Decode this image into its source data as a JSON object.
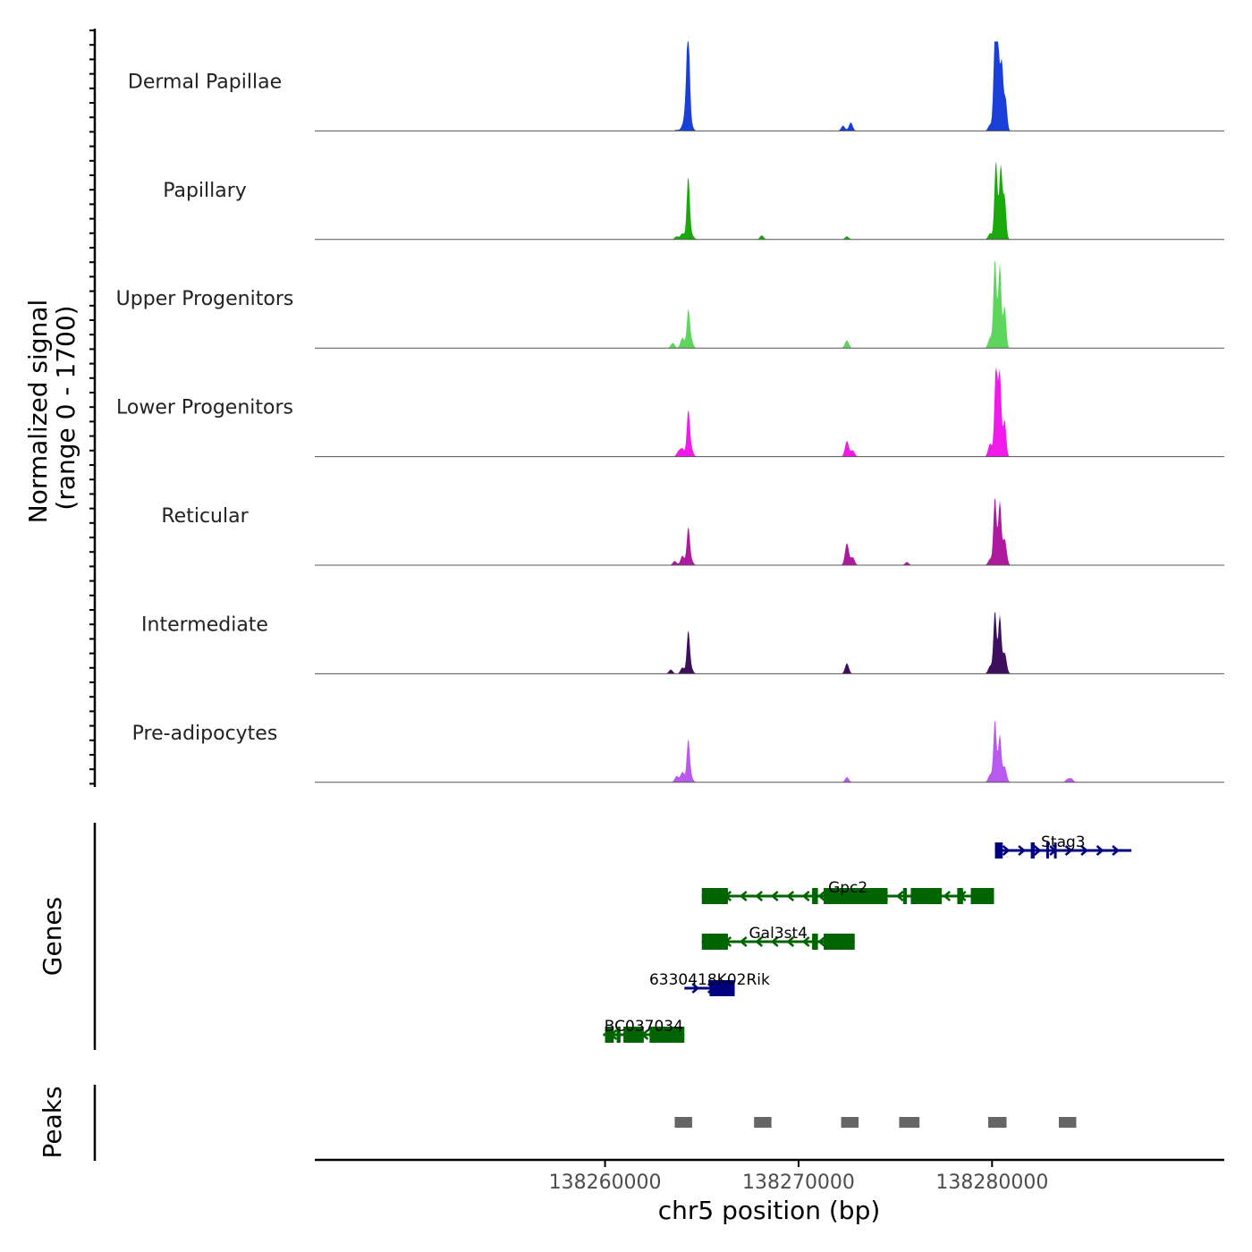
{
  "chart_data": {
    "type": "area",
    "chromosome": "chr5",
    "xlabel": "chr5 position (bp)",
    "xlim": [
      138245000,
      138292000
    ],
    "x_ticks": [
      138260000,
      138270000,
      138280000
    ],
    "x_tick_labels": [
      "138260000",
      "138270000",
      "138280000"
    ],
    "signal_axis": {
      "title_line1": "Normalized signal",
      "title_line2": "(range 0 - 1700)",
      "ylim": [
        0,
        1700
      ]
    },
    "tracks": [
      {
        "name": "Dermal Papillae",
        "color": "#1a3fd9",
        "peaks": [
          [
            138263700,
            20
          ],
          [
            138264000,
            75
          ],
          [
            138264200,
            480
          ],
          [
            138264300,
            1700
          ],
          [
            138264450,
            120
          ],
          [
            138272300,
            100
          ],
          [
            138272700,
            160
          ],
          [
            138279900,
            120
          ],
          [
            138280150,
            1700
          ],
          [
            138280300,
            1600
          ],
          [
            138280500,
            1300
          ],
          [
            138280700,
            600
          ]
        ]
      },
      {
        "name": "Papillary",
        "color": "#1aa80d",
        "peaks": [
          [
            138263700,
            60
          ],
          [
            138264000,
            120
          ],
          [
            138264300,
            1200
          ],
          [
            138264500,
            80
          ],
          [
            138268100,
            80
          ],
          [
            138272500,
            60
          ],
          [
            138279900,
            120
          ],
          [
            138280200,
            1500
          ],
          [
            138280450,
            1400
          ],
          [
            138280650,
            800
          ]
        ]
      },
      {
        "name": "Upper Progenitors",
        "color": "#5ed65e",
        "peaks": [
          [
            138263500,
            100
          ],
          [
            138264000,
            200
          ],
          [
            138264300,
            700
          ],
          [
            138264450,
            150
          ],
          [
            138272500,
            150
          ],
          [
            138279900,
            200
          ],
          [
            138280150,
            1700
          ],
          [
            138280400,
            1600
          ],
          [
            138280650,
            800
          ]
        ]
      },
      {
        "name": "Lower Progenitors",
        "color": "#f01aea",
        "peaks": [
          [
            138263800,
            100
          ],
          [
            138264000,
            150
          ],
          [
            138264300,
            850
          ],
          [
            138264450,
            150
          ],
          [
            138272500,
            300
          ],
          [
            138272800,
            120
          ],
          [
            138279900,
            250
          ],
          [
            138280200,
            1700
          ],
          [
            138280400,
            1600
          ],
          [
            138280650,
            700
          ]
        ]
      },
      {
        "name": "Reticular",
        "color": "#ad1a9e",
        "peaks": [
          [
            138263600,
            80
          ],
          [
            138264000,
            180
          ],
          [
            138264300,
            700
          ],
          [
            138264450,
            100
          ],
          [
            138272500,
            420
          ],
          [
            138272800,
            150
          ],
          [
            138275600,
            60
          ],
          [
            138279900,
            120
          ],
          [
            138280150,
            1300
          ],
          [
            138280400,
            1200
          ],
          [
            138280650,
            500
          ]
        ]
      },
      {
        "name": "Intermediate",
        "color": "#3d0f5c",
        "peaks": [
          [
            138263400,
            80
          ],
          [
            138264000,
            120
          ],
          [
            138264300,
            800
          ],
          [
            138264450,
            100
          ],
          [
            138272500,
            200
          ],
          [
            138279900,
            150
          ],
          [
            138280150,
            1200
          ],
          [
            138280400,
            1100
          ],
          [
            138280650,
            400
          ]
        ]
      },
      {
        "name": "Pre-adipocytes",
        "color": "#b85af0",
        "peaks": [
          [
            138263700,
            120
          ],
          [
            138264000,
            200
          ],
          [
            138264300,
            800
          ],
          [
            138264450,
            100
          ],
          [
            138272500,
            100
          ],
          [
            138279900,
            150
          ],
          [
            138280150,
            1200
          ],
          [
            138280400,
            900
          ],
          [
            138280650,
            300
          ],
          [
            138283900,
            60
          ],
          [
            138284100,
            70
          ]
        ]
      }
    ],
    "genes": {
      "title": "Genes",
      "items": [
        {
          "name": "Stag3",
          "strand": "+",
          "color": "#000080",
          "start": 138280150,
          "end": 138287200,
          "exons": [
            [
              138280150,
              138280550
            ],
            [
              138282000,
              138282200
            ],
            [
              138282800,
              138282900
            ],
            [
              138283200,
              138283300
            ]
          ]
        },
        {
          "name": "Gpc2",
          "strand": "-",
          "color": "#006400",
          "start": 138265000,
          "end": 138280100,
          "exons": [
            [
              138265000,
              138266350
            ],
            [
              138270700,
              138271000
            ],
            [
              138271300,
              138274600
            ],
            [
              138275400,
              138275600
            ],
            [
              138275800,
              138277400
            ],
            [
              138278200,
              138278500
            ],
            [
              138278900,
              138280100
            ]
          ]
        },
        {
          "name": "Gal3st4",
          "strand": "-",
          "color": "#006400",
          "start": 138265000,
          "end": 138272900,
          "exons": [
            [
              138265000,
              138266350
            ],
            [
              138270700,
              138271000
            ],
            [
              138271300,
              138272900
            ]
          ]
        },
        {
          "name": "6330418K02Rik",
          "strand": "+",
          "color": "#000080",
          "start": 138264100,
          "end": 138266700,
          "exons": [
            [
              138265400,
              138266700
            ]
          ]
        },
        {
          "name": "BC037034",
          "strand": "-",
          "color": "#006400",
          "start": 138259900,
          "end": 138264100,
          "exons": [
            [
              138260000,
              138260450
            ],
            [
              138260600,
              138260800
            ],
            [
              138260950,
              138262000
            ],
            [
              138262300,
              138264100
            ]
          ]
        }
      ]
    },
    "peaks_track": {
      "title": "Peaks",
      "color": "#666666",
      "regions": [
        [
          138263600,
          138264500
        ],
        [
          138267700,
          138268600
        ],
        [
          138272200,
          138273100
        ],
        [
          138275200,
          138276250
        ],
        [
          138279800,
          138280750
        ],
        [
          138283450,
          138284350
        ]
      ]
    }
  }
}
